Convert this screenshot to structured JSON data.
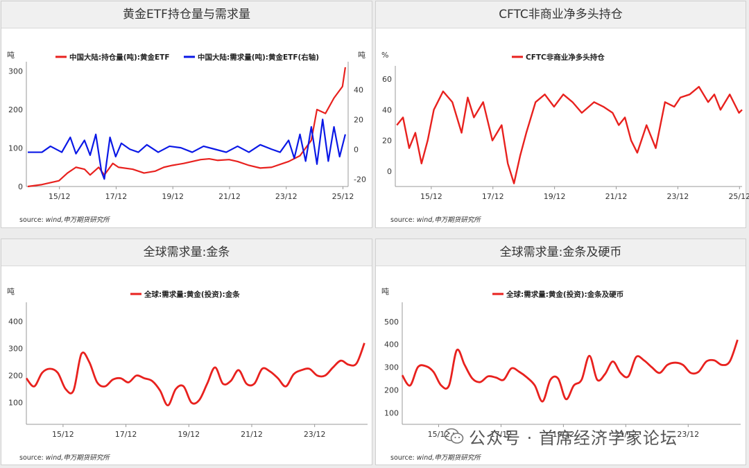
{
  "colors": {
    "red": "#e8211e",
    "blue": "#0a18e6"
  },
  "panels": [
    {
      "title": "黄金ETF持仓量与需求量",
      "source_prefix": "source:",
      "source_text": "wind,申万期货研究所"
    },
    {
      "title": "CFTC非商业净多头持仓",
      "source_prefix": "source:",
      "source_text": "wind,申万期货研究所"
    },
    {
      "title": "全球需求量:金条",
      "source_prefix": "source:",
      "source_text": "wind,申万期货研究所"
    },
    {
      "title": "全球需求量:金条及硬币",
      "source_prefix": "source:",
      "source_text": "wind,申万期货研究所"
    }
  ],
  "watermark": "公众号 · 首席经济学家论坛",
  "chart_data": [
    {
      "type": "line",
      "title": "黄金ETF持仓量与需求量",
      "ylabel_left": "吨",
      "ylabel_right": "吨",
      "x_ticks": [
        "15/12",
        "17/12",
        "19/12",
        "21/12",
        "23/12",
        "25/12"
      ],
      "y_left_ticks": [
        0,
        100,
        200,
        300
      ],
      "y_left_lim": [
        0,
        310
      ],
      "y_right_ticks": [
        -20,
        0,
        20,
        40
      ],
      "y_right_lim": [
        -25,
        55
      ],
      "series": [
        {
          "name": "中国大陆:持仓量(吨):黄金ETF",
          "axis": "left",
          "color": "#e8211e",
          "x": [
            2014.8,
            2015.3,
            2015.9,
            2016.2,
            2016.5,
            2016.8,
            2017.0,
            2017.3,
            2017.5,
            2017.8,
            2018.0,
            2018.5,
            2018.9,
            2019.3,
            2019.6,
            2019.9,
            2020.3,
            2020.6,
            2020.9,
            2021.2,
            2021.5,
            2021.9,
            2022.2,
            2022.6,
            2023.0,
            2023.4,
            2023.8,
            2024.0,
            2024.4,
            2024.8,
            2025.0,
            2025.3,
            2025.6,
            2025.9,
            2026.0
          ],
          "y": [
            0,
            5,
            15,
            35,
            50,
            45,
            30,
            50,
            30,
            60,
            50,
            45,
            35,
            40,
            50,
            55,
            60,
            65,
            70,
            72,
            68,
            70,
            65,
            55,
            48,
            50,
            60,
            65,
            80,
            120,
            200,
            190,
            230,
            260,
            310
          ]
        },
        {
          "name": "中国大陆:需求量(吨):黄金ETF(右轴)",
          "axis": "right",
          "color": "#0a18e6",
          "x": [
            2014.8,
            2015.3,
            2015.6,
            2016.0,
            2016.3,
            2016.5,
            2016.8,
            2017.0,
            2017.2,
            2017.4,
            2017.5,
            2017.7,
            2017.9,
            2018.1,
            2018.4,
            2018.7,
            2019.0,
            2019.4,
            2019.8,
            2020.2,
            2020.6,
            2021.0,
            2021.4,
            2021.8,
            2022.2,
            2022.6,
            2023.0,
            2023.4,
            2023.7,
            2024.0,
            2024.2,
            2024.4,
            2024.6,
            2024.8,
            2025.0,
            2025.2,
            2025.4,
            2025.6,
            2025.8,
            2026.0
          ],
          "y": [
            -2,
            -2,
            2,
            -2,
            8,
            -3,
            6,
            -4,
            10,
            -15,
            -20,
            8,
            -5,
            4,
            0,
            -2,
            3,
            -2,
            2,
            1,
            -2,
            2,
            0,
            -2,
            2,
            -2,
            3,
            0,
            -2,
            6,
            -6,
            10,
            -8,
            15,
            -10,
            20,
            -8,
            15,
            -5,
            10
          ]
        }
      ]
    },
    {
      "type": "line",
      "title": "CFTC非商业净多头持仓",
      "ylabel": "%",
      "x_ticks": [
        "15/12",
        "17/12",
        "19/12",
        "21/12",
        "23/12",
        "25/12"
      ],
      "y_ticks": [
        0,
        20,
        40,
        60
      ],
      "ylim": [
        -10,
        65
      ],
      "series": [
        {
          "name": "CFTC非商业净多头持仓",
          "color": "#e8211e",
          "x": [
            2014.8,
            2015.0,
            2015.2,
            2015.4,
            2015.6,
            2015.8,
            2016.0,
            2016.3,
            2016.6,
            2016.9,
            2017.1,
            2017.3,
            2017.6,
            2017.9,
            2018.2,
            2018.4,
            2018.6,
            2018.8,
            2019.0,
            2019.3,
            2019.6,
            2019.9,
            2020.2,
            2020.5,
            2020.8,
            2021.2,
            2021.5,
            2021.8,
            2022.0,
            2022.2,
            2022.4,
            2022.6,
            2022.9,
            2023.2,
            2023.5,
            2023.8,
            2024.0,
            2024.3,
            2024.6,
            2024.9,
            2025.1,
            2025.3,
            2025.6,
            2025.9,
            2026.0
          ],
          "y": [
            30,
            35,
            15,
            25,
            5,
            20,
            40,
            52,
            45,
            25,
            48,
            35,
            45,
            20,
            30,
            5,
            -8,
            10,
            25,
            45,
            50,
            42,
            50,
            45,
            38,
            45,
            42,
            38,
            30,
            35,
            20,
            12,
            30,
            15,
            45,
            42,
            48,
            50,
            55,
            45,
            50,
            40,
            50,
            38,
            40
          ]
        }
      ]
    },
    {
      "type": "line",
      "title": "全球需求量:金条",
      "ylabel": "吨",
      "x_ticks": [
        "15/12",
        "17/12",
        "19/12",
        "21/12",
        "23/12"
      ],
      "y_ticks": [
        100,
        200,
        300,
        400
      ],
      "ylim": [
        20,
        450
      ],
      "series": [
        {
          "name": "全球:需求量:黄金(投资):金条",
          "color": "#e8211e",
          "x": [
            2014.75,
            2015.0,
            2015.25,
            2015.5,
            2015.75,
            2016.0,
            2016.25,
            2016.5,
            2016.75,
            2017.0,
            2017.25,
            2017.5,
            2017.75,
            2018.0,
            2018.25,
            2018.5,
            2018.75,
            2019.0,
            2019.25,
            2019.5,
            2019.75,
            2020.0,
            2020.25,
            2020.5,
            2020.75,
            2021.0,
            2021.25,
            2021.5,
            2021.75,
            2022.0,
            2022.25,
            2022.5,
            2022.75,
            2023.0,
            2023.25,
            2023.5,
            2023.75,
            2024.0,
            2024.25,
            2024.5,
            2024.75,
            2025.0,
            2025.25,
            2025.5
          ],
          "y": [
            190,
            160,
            210,
            225,
            210,
            150,
            145,
            280,
            250,
            175,
            160,
            185,
            190,
            175,
            200,
            190,
            180,
            145,
            90,
            150,
            160,
            100,
            110,
            170,
            230,
            170,
            180,
            220,
            170,
            170,
            225,
            215,
            190,
            160,
            205,
            220,
            225,
            200,
            200,
            230,
            255,
            240,
            245,
            320
          ]
        }
      ]
    },
    {
      "type": "line",
      "title": "全球需求量:金条及硬币",
      "ylabel": "吨",
      "x_ticks": [
        "15/12",
        "17/12",
        "19/12",
        "21/12",
        "23/12"
      ],
      "y_ticks": [
        100,
        200,
        300,
        400,
        500
      ],
      "ylim": [
        50,
        560
      ],
      "series": [
        {
          "name": "全球:需求量:黄金(投资):金条及硬币",
          "color": "#e8211e",
          "x": [
            2014.75,
            2015.0,
            2015.25,
            2015.5,
            2015.75,
            2016.0,
            2016.25,
            2016.5,
            2016.75,
            2017.0,
            2017.25,
            2017.5,
            2017.75,
            2018.0,
            2018.25,
            2018.5,
            2018.75,
            2019.0,
            2019.25,
            2019.5,
            2019.75,
            2020.0,
            2020.25,
            2020.5,
            2020.75,
            2021.0,
            2021.25,
            2021.5,
            2021.75,
            2022.0,
            2022.25,
            2022.5,
            2022.75,
            2023.0,
            2023.25,
            2023.5,
            2023.75,
            2024.0,
            2024.25,
            2024.5,
            2024.75,
            2025.0,
            2025.25,
            2025.5
          ],
          "y": [
            265,
            220,
            300,
            305,
            280,
            220,
            220,
            375,
            310,
            250,
            235,
            260,
            255,
            245,
            295,
            280,
            255,
            220,
            150,
            245,
            250,
            160,
            220,
            245,
            350,
            245,
            270,
            325,
            275,
            260,
            345,
            330,
            300,
            275,
            310,
            320,
            310,
            275,
            280,
            325,
            330,
            310,
            325,
            420
          ]
        }
      ]
    }
  ]
}
